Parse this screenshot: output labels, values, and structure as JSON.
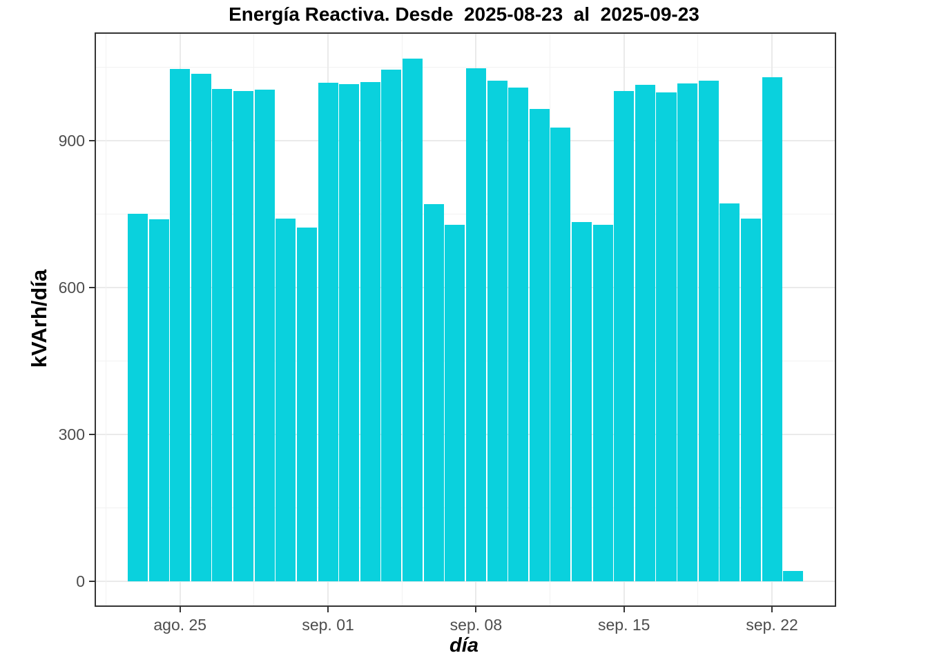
{
  "page": {
    "background": "#ffffff"
  },
  "chart_data": {
    "type": "bar",
    "title": "Energía Reactiva. Desde  2025-08-23  al  2025-09-23",
    "xlabel": "día",
    "ylabel": "kVArh/día",
    "legend": "none",
    "grid": "on",
    "bar_color": "#0ad1dd",
    "axis_text_color": "#4d4d4d",
    "panel_border_color": "#333333",
    "grid_major_color": "#eaeaea",
    "grid_minor_color": "#f2f2f2",
    "ylim": [
      -49,
      1118
    ],
    "y_major_ticks": [
      0,
      300,
      600,
      900
    ],
    "y_minor_gridlines": [
      150,
      450,
      750,
      1050
    ],
    "x_ticks": [
      {
        "label": "ago. 25",
        "index": 2
      },
      {
        "label": "sep. 01",
        "index": 9
      },
      {
        "label": "sep. 08",
        "index": 16
      },
      {
        "label": "sep. 15",
        "index": 23
      },
      {
        "label": "sep. 22",
        "index": 30
      }
    ],
    "x_minor_gridline_indices": [
      -1.5,
      5.5,
      12.5,
      19.5,
      26.5
    ],
    "x": [
      "2025-08-23",
      "2025-08-24",
      "2025-08-25",
      "2025-08-26",
      "2025-08-27",
      "2025-08-28",
      "2025-08-29",
      "2025-08-30",
      "2025-08-31",
      "2025-09-01",
      "2025-09-02",
      "2025-09-03",
      "2025-09-04",
      "2025-09-05",
      "2025-09-06",
      "2025-09-07",
      "2025-09-08",
      "2025-09-09",
      "2025-09-10",
      "2025-09-11",
      "2025-09-12",
      "2025-09-13",
      "2025-09-14",
      "2025-09-15",
      "2025-09-16",
      "2025-09-17",
      "2025-09-18",
      "2025-09-19",
      "2025-09-20",
      "2025-09-21",
      "2025-09-22",
      "2025-09-23"
    ],
    "values": [
      750,
      740,
      1046,
      1036,
      1005,
      1001,
      1004,
      741,
      723,
      1018,
      1015,
      1020,
      1045,
      1068,
      770,
      728,
      1048,
      1022,
      1008,
      964,
      927,
      734,
      728,
      1001,
      1014,
      998,
      1017,
      1022,
      771,
      741,
      1030,
      22
    ]
  }
}
